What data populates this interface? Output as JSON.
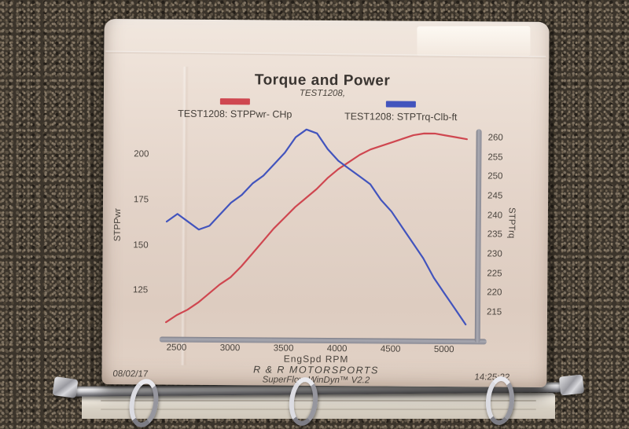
{
  "photo": {
    "description": "printed dyno chart page in a 3-ring binder on carpet",
    "date_stamp": "08/02/17",
    "time_stamp": "14:25:22"
  },
  "footer": {
    "brand": "R & R MOTORSPORTS",
    "software": "SuperFlow WinDyn™ V2.2"
  },
  "colors": {
    "power_line": "#cf4750",
    "torque_line": "#4254bd",
    "axis_bar": "#9b9ba3",
    "paper": "#e3d3c8",
    "text": "#45403b"
  },
  "chart_data": {
    "type": "line",
    "title": "Torque and Power",
    "subtitle": "TEST1208,",
    "xlabel": "EngSpd  RPM",
    "ylabel_left": "STPPwr",
    "ylabel_right": "STPTrq",
    "legend_position": "top",
    "grid": false,
    "x_ticks": [
      2500,
      3000,
      3500,
      4000,
      4500,
      5000
    ],
    "y_left_ticks": [
      125,
      150,
      175,
      200
    ],
    "y_right_ticks": [
      215,
      220,
      225,
      230,
      235,
      240,
      245,
      250,
      255,
      260
    ],
    "x_range": [
      2340,
      5345
    ],
    "y_left_range": [
      100,
      214.3
    ],
    "y_right_range": [
      208.3,
      261.8
    ],
    "x": [
      2400,
      2500,
      2600,
      2700,
      2800,
      2900,
      3000,
      3100,
      3200,
      3300,
      3400,
      3500,
      3600,
      3700,
      3800,
      3900,
      4000,
      4100,
      4200,
      4300,
      4400,
      4500,
      4600,
      4700,
      4800,
      4900,
      5000,
      5100,
      5200
    ],
    "series": [
      {
        "name": "TEST1208: STPPwr- CHp",
        "axis": "left",
        "unit": "CHp",
        "color": "#cf4750",
        "values": [
          108,
          112,
          115,
          119,
          124,
          129,
          133,
          139,
          146,
          153,
          160,
          166,
          172,
          177,
          182,
          188,
          193,
          197,
          201,
          204,
          206,
          208,
          210,
          212,
          213,
          213,
          212,
          211,
          210
        ]
      },
      {
        "name": "TEST1208: STPTrq-Clb-ft",
        "axis": "right",
        "unit": "Clb-ft",
        "color": "#4254bd",
        "values": [
          238,
          240,
          238,
          236,
          237,
          240,
          243,
          245,
          248,
          250,
          253,
          256,
          260,
          262,
          261,
          257,
          254,
          252,
          250,
          248,
          244,
          241,
          237,
          233,
          229,
          224,
          220,
          216,
          212
        ]
      }
    ]
  }
}
